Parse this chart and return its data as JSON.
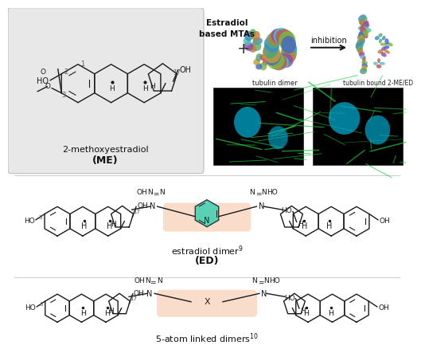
{
  "bg_color": "#ffffff",
  "top_left_bg": "#e8e8e8",
  "compound1_name": "2-methoxyestradiol",
  "compound1_abbr": "(ME)",
  "compound2_name": "estradiol dimer",
  "compound2_sup": "9",
  "compound2_abbr": "(ED)",
  "compound3_name": "5-atom linked dimers",
  "compound3_sup": "10",
  "label_estradiol_mtas": "Estradiol\nbased MTAs",
  "label_plus": "+",
  "label_inhibition": "inhibition",
  "label_tubulin_dimer": "tubulin dimer",
  "label_tubulin_bound": "tubulin bound 2-ME/ED",
  "highlight_pyridine_color": "#3ecfb2",
  "highlight_linker_color": "#f5c0a0",
  "structure_line_color": "#1a1a1a",
  "number_color": "#555555"
}
